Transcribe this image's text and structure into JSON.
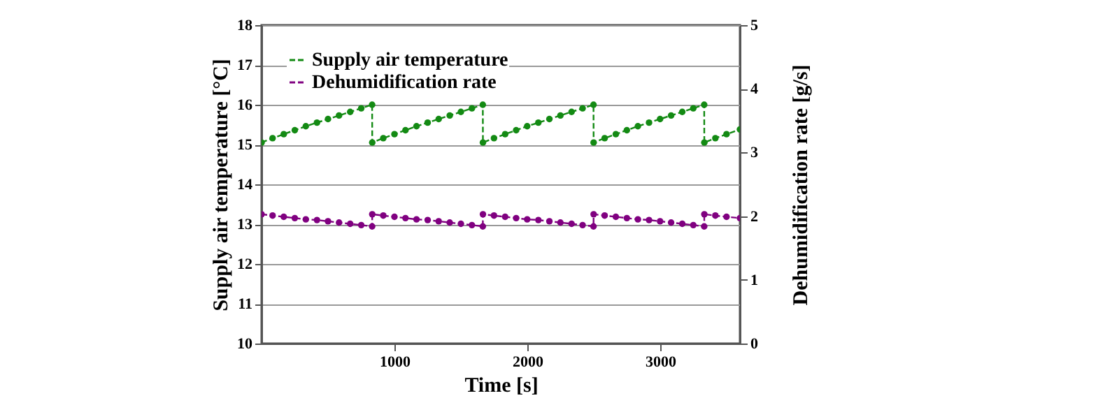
{
  "chart_data": {
    "type": "line",
    "xlabel": "Time [s]",
    "ylabel": "Supply air temperature [°C]",
    "y2label": "Dehumidification rate [g/s]",
    "x": [
      0,
      83,
      167,
      250,
      333,
      417,
      500,
      583,
      667,
      750,
      832,
      833,
      916,
      1000,
      1083,
      1166,
      1250,
      1333,
      1416,
      1500,
      1583,
      1665,
      1666,
      1749,
      1833,
      1916,
      1999,
      2083,
      2166,
      2249,
      2333,
      2416,
      2498,
      2499,
      2582,
      2666,
      2749,
      2832,
      2916,
      2999,
      3082,
      3166,
      3249,
      3331,
      3332,
      3415,
      3499,
      3600
    ],
    "series": [
      {
        "name": "Supply air temperature",
        "color": "#138a13",
        "values": [
          15.05,
          15.16,
          15.26,
          15.36,
          15.46,
          15.55,
          15.64,
          15.73,
          15.82,
          15.91,
          16.0,
          15.05,
          15.16,
          15.26,
          15.36,
          15.46,
          15.55,
          15.64,
          15.73,
          15.82,
          15.91,
          16.0,
          15.05,
          15.16,
          15.26,
          15.36,
          15.46,
          15.55,
          15.64,
          15.73,
          15.82,
          15.91,
          16.0,
          15.05,
          15.16,
          15.26,
          15.36,
          15.46,
          15.55,
          15.64,
          15.73,
          15.82,
          15.91,
          16.0,
          15.05,
          15.16,
          15.26,
          15.38
        ]
      },
      {
        "name": "Dehumidification rate",
        "color": "#800080",
        "axis": "y2",
        "values": [
          2.03,
          2.01,
          1.99,
          1.97,
          1.95,
          1.94,
          1.92,
          1.9,
          1.88,
          1.86,
          1.84,
          2.03,
          2.01,
          1.99,
          1.97,
          1.95,
          1.94,
          1.92,
          1.9,
          1.88,
          1.86,
          1.84,
          2.03,
          2.01,
          1.99,
          1.97,
          1.95,
          1.94,
          1.92,
          1.9,
          1.88,
          1.86,
          1.84,
          2.03,
          2.01,
          1.99,
          1.97,
          1.95,
          1.94,
          1.92,
          1.9,
          1.88,
          1.86,
          1.84,
          2.03,
          2.01,
          1.99,
          1.97
        ]
      }
    ],
    "xlim": [
      0,
      3600
    ],
    "xticks": [
      1000,
      2000,
      3000
    ],
    "ylim": [
      10,
      18
    ],
    "yticks": [
      10,
      11,
      12,
      13,
      14,
      15,
      16,
      17,
      18
    ],
    "y2lim": [
      0,
      5
    ],
    "y2ticks": [
      0,
      1,
      2,
      3,
      4,
      5
    ],
    "grid": "y",
    "legend": "top left",
    "marker": "circle",
    "line_style": "dashed"
  }
}
